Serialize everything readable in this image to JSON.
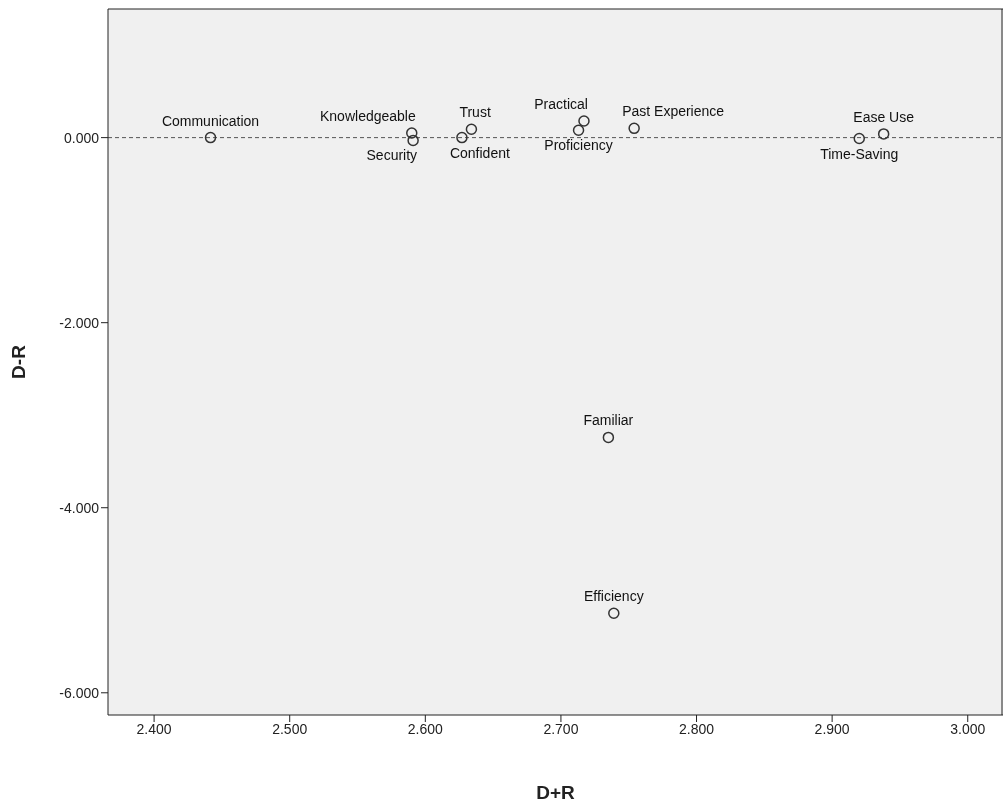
{
  "chart_data": {
    "type": "scatter",
    "xlabel": "D+R",
    "ylabel": "D-R",
    "x": [
      2.4416,
      2.59,
      2.591,
      2.634,
      2.627,
      2.717,
      2.713,
      2.754,
      2.92,
      2.938,
      2.735,
      2.739
    ],
    "values": [
      0.0,
      0.05,
      -0.03,
      0.09,
      0.0,
      0.18,
      0.08,
      0.1,
      -0.01,
      0.04,
      -3.24,
      -5.14
    ],
    "color": "#333333",
    "marker": "circle",
    "grid": false,
    "legend": false,
    "xlim": [
      2.366,
      3.026
    ],
    "xticks": [
      {
        "value": 2.4,
        "label": "2.400"
      },
      {
        "value": 2.5,
        "label": "2.500"
      },
      {
        "value": 2.6,
        "label": "2.600"
      },
      {
        "value": 2.7,
        "label": "2.700"
      },
      {
        "value": 2.8,
        "label": "2.800"
      },
      {
        "value": 2.9,
        "label": "2.900"
      },
      {
        "value": 3.0,
        "label": "3.000"
      }
    ],
    "ylim": [
      -6.24,
      1.39
    ],
    "yticks": [
      {
        "value": 0,
        "label": "0.000"
      },
      {
        "value": -2,
        "label": "-2.000"
      },
      {
        "value": -4,
        "label": "-4.000"
      },
      {
        "value": -6,
        "label": "-6.000"
      }
    ],
    "ref_lines": [
      {
        "axis": "y",
        "value": 0,
        "line_style": "dashed",
        "color": "#555555"
      }
    ],
    "annotations": [
      {
        "text": "Communication",
        "x": 2.4416,
        "y": 0.0
      },
      {
        "text": "Knowledgeable",
        "x": 2.59,
        "y": 0.05
      },
      {
        "text": "Security",
        "x": 2.591,
        "y": -0.03
      },
      {
        "text": "Trust",
        "x": 2.634,
        "y": 0.09
      },
      {
        "text": "Confident",
        "x": 2.627,
        "y": 0.0
      },
      {
        "text": "Practical",
        "x": 2.717,
        "y": 0.18
      },
      {
        "text": "Proficiency",
        "x": 2.713,
        "y": 0.08
      },
      {
        "text": "Past Experience",
        "x": 2.754,
        "y": 0.1
      },
      {
        "text": "Time-Saving",
        "x": 2.92,
        "y": -0.01
      },
      {
        "text": "Ease Use",
        "x": 2.938,
        "y": 0.04
      },
      {
        "text": "Familiar",
        "x": 2.735,
        "y": -3.24
      },
      {
        "text": "Efficiency",
        "x": 2.739,
        "y": -5.14
      }
    ]
  }
}
